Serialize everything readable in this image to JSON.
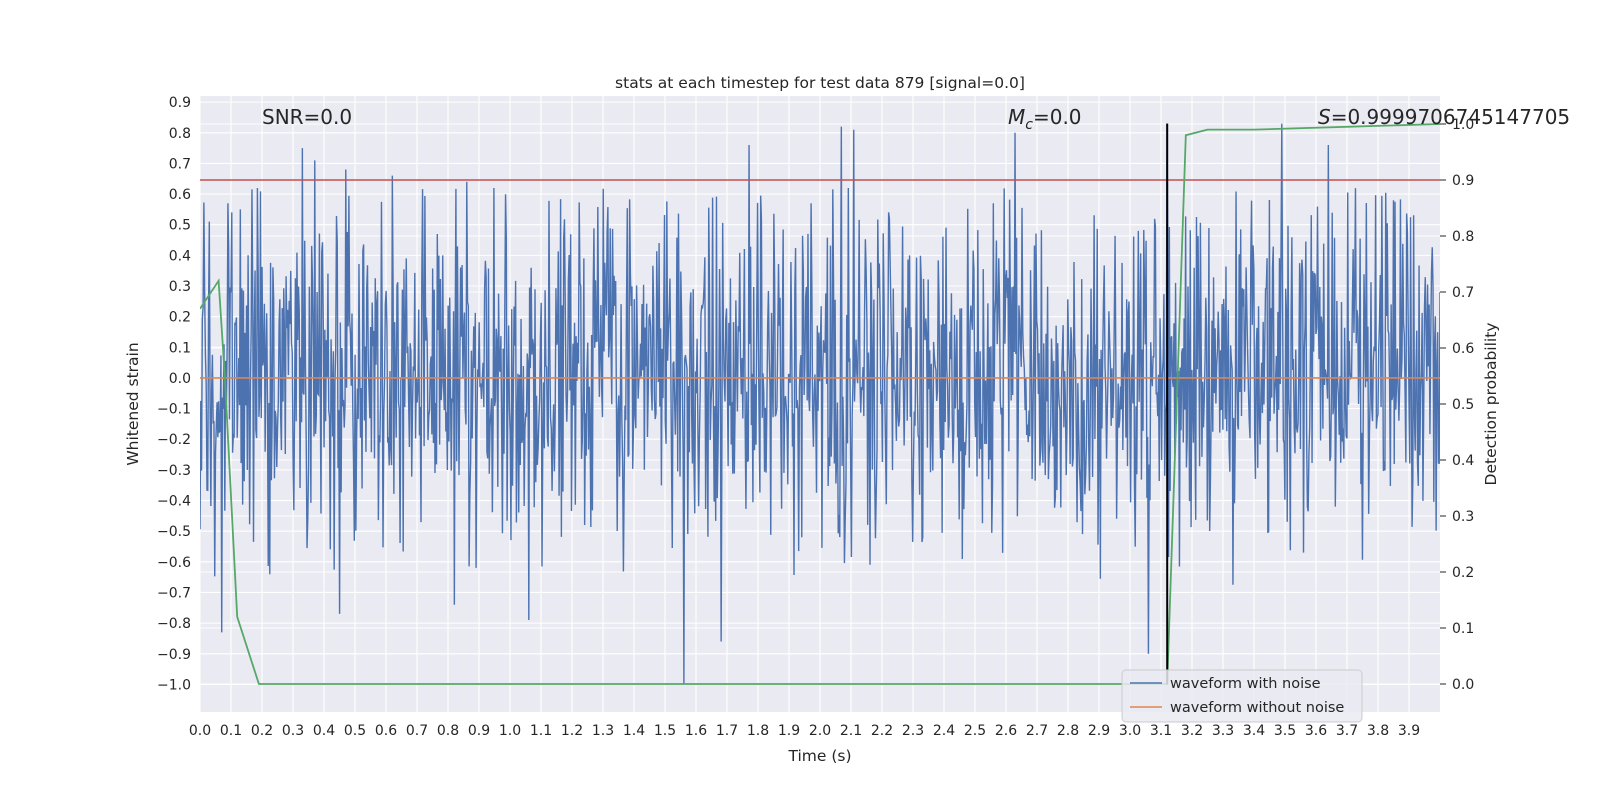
{
  "chart_data": {
    "type": "line",
    "title": "stats at each timestep for test data 879 [signal=0.0]",
    "xlabel": "Time (s)",
    "ylabel": "Whitened strain",
    "ylabel_right": "Detection probability",
    "xlim": [
      0.0,
      4.0
    ],
    "ylim": [
      -1.09,
      0.92
    ],
    "ylim_right": [
      -0.05,
      1.05
    ],
    "xticks": [
      0.0,
      0.1,
      0.2,
      0.3,
      0.4,
      0.5,
      0.6,
      0.7,
      0.8,
      0.9,
      1.0,
      1.1,
      1.2,
      1.3,
      1.4,
      1.5,
      1.6,
      1.7,
      1.8,
      1.9,
      2.0,
      2.1,
      2.2,
      2.3,
      2.4,
      2.5,
      2.6,
      2.7,
      2.8,
      2.9,
      3.0,
      3.1,
      3.2,
      3.3,
      3.4,
      3.5,
      3.6,
      3.7,
      3.8,
      3.9
    ],
    "xtick_labels": [
      "0.0",
      "0.1",
      "0.2",
      "0.3",
      "0.4",
      "0.5",
      "0.6",
      "0.7",
      "0.8",
      "0.9",
      "1.0",
      "1.1",
      "1.2",
      "1.3",
      "1.4",
      "1.5",
      "1.6",
      "1.7",
      "1.8",
      "1.9",
      "2.0",
      "2.1",
      "2.2",
      "2.3",
      "2.4",
      "2.5",
      "2.6",
      "2.7",
      "2.8",
      "2.9",
      "3.0",
      "3.1",
      "3.2",
      "3.3",
      "3.4",
      "3.5",
      "3.6",
      "3.7",
      "3.8",
      "3.9"
    ],
    "yticks": [
      0.9,
      0.8,
      0.7,
      0.6,
      0.5,
      0.4,
      0.3,
      0.2,
      0.1,
      0.0,
      -0.1,
      -0.2,
      -0.3,
      -0.4,
      -0.5,
      -0.6,
      -0.7,
      -0.8,
      -0.9,
      -1.0
    ],
    "ytick_labels": [
      "0.9",
      "0.8",
      "0.7",
      "0.6",
      "0.5",
      "0.4",
      "0.3",
      "0.2",
      "0.1",
      "0.0",
      "−0.1",
      "−0.2",
      "−0.3",
      "−0.4",
      "−0.5",
      "−0.6",
      "−0.7",
      "−0.8",
      "−0.9",
      "−1.0"
    ],
    "yticks_right": [
      0.0,
      0.1,
      0.2,
      0.3,
      0.4,
      0.5,
      0.6,
      0.7,
      0.8,
      0.9,
      1.0
    ],
    "ytick_labels_right": [
      "0.0",
      "0.1",
      "0.2",
      "0.3",
      "0.4",
      "0.5",
      "0.6",
      "0.7",
      "0.8",
      "0.9",
      "1.0"
    ],
    "annotations": {
      "snr": "SNR=0.0",
      "mc_symbol": "M",
      "mc_sub": "c",
      "mc_value": "=0.0",
      "s_symbol": "S",
      "s_value": "=0.9999706745147705"
    },
    "series": [
      {
        "name": "waveform with noise",
        "color": "#4c72b0",
        "kind": "noise",
        "sample_count": 1600,
        "typical_amplitude": 0.38,
        "peaks": [
          [
            0.03,
            0.51
          ],
          [
            0.07,
            -0.83
          ],
          [
            0.09,
            0.57
          ],
          [
            0.33,
            0.75
          ],
          [
            0.37,
            0.71
          ],
          [
            0.45,
            -0.77
          ],
          [
            0.47,
            0.68
          ],
          [
            0.62,
            0.66
          ],
          [
            0.82,
            -0.74
          ],
          [
            0.86,
            0.64
          ],
          [
            1.06,
            -0.79
          ],
          [
            1.77,
            0.76
          ],
          [
            1.56,
            -1.0
          ],
          [
            1.68,
            -0.86
          ],
          [
            2.07,
            0.82
          ],
          [
            2.11,
            0.81
          ],
          [
            2.63,
            0.8
          ],
          [
            3.06,
            -0.9
          ],
          [
            3.12,
            0.83
          ],
          [
            3.49,
            0.83
          ],
          [
            3.64,
            0.76
          ],
          [
            3.85,
            0.58
          ]
        ]
      },
      {
        "name": "waveform without noise",
        "color": "#dd8452",
        "kind": "flat",
        "value": 0.0
      },
      {
        "name": "detection probability",
        "color": "#55a868",
        "axis": "right",
        "x": [
          0.0,
          0.06,
          0.08,
          0.12,
          0.19,
          0.3,
          2.7,
          3.12,
          3.18,
          3.25,
          3.4,
          4.0
        ],
        "values": [
          0.67,
          0.72,
          0.55,
          0.12,
          0.0,
          0.0,
          0.0,
          0.0,
          0.98,
          0.99,
          0.99,
          1.0
        ]
      }
    ],
    "threshold_line": {
      "value_right": 0.9,
      "color": "#c44e52"
    },
    "marker_line": {
      "x": 3.12,
      "color": "#000000"
    },
    "legend": {
      "placement": "lower-right",
      "entries": [
        {
          "label": "waveform with noise",
          "color": "#4c72b0"
        },
        {
          "label": "waveform without noise",
          "color": "#dd8452"
        }
      ]
    },
    "grid": true,
    "background_color": "#eaeaf2"
  }
}
